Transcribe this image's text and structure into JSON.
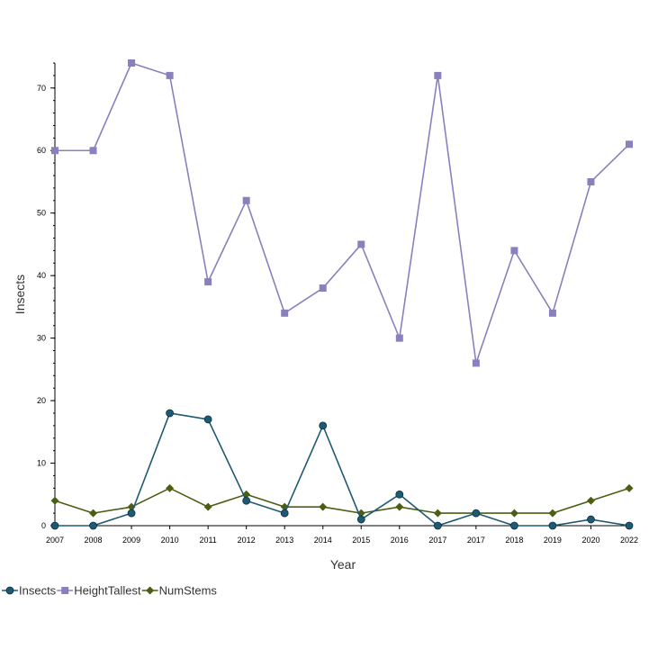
{
  "chart_data": {
    "type": "line",
    "xlabel": "Year",
    "ylabel": "Insects",
    "ylim": [
      0,
      74
    ],
    "yticks": [
      0,
      10,
      20,
      30,
      40,
      50,
      60,
      70
    ],
    "categories": [
      "2007",
      "2008",
      "2009",
      "2010",
      "2011",
      "2012",
      "2013",
      "2014",
      "2015",
      "2016",
      "2017",
      "2017",
      "2018",
      "2019",
      "2020",
      "2022"
    ],
    "series": [
      {
        "name": "Insects",
        "color": "#1f5a73",
        "marker": "circle",
        "values": [
          0,
          0,
          2,
          18,
          17,
          4,
          2,
          16,
          1,
          5,
          0,
          2,
          0,
          0,
          1,
          0
        ]
      },
      {
        "name": "HeightTallest",
        "color": "#8b80bd",
        "marker": "square",
        "values": [
          60,
          60,
          74,
          72,
          39,
          52,
          34,
          38,
          45,
          30,
          72,
          26,
          44,
          34,
          55,
          61
        ]
      },
      {
        "name": "NumStems",
        "color": "#4a5e14",
        "marker": "diamond",
        "values": [
          4,
          2,
          3,
          6,
          3,
          5,
          3,
          3,
          2,
          3,
          2,
          2,
          2,
          2,
          4,
          6
        ]
      }
    ],
    "legend_position": "bottom-left"
  }
}
